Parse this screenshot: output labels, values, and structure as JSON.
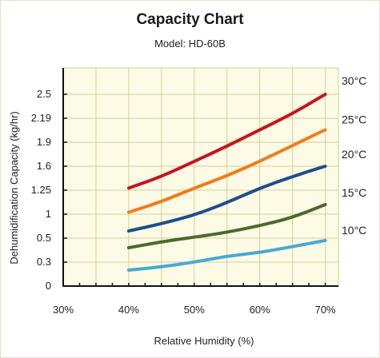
{
  "chart_data": {
    "type": "line",
    "title": "Capacity Chart",
    "subtitle": "Model: HD-60B",
    "xlabel": "Relative Humidity (%)",
    "ylabel": "Dehumidification Capacity (kg/hr)",
    "x_ticks": [
      {
        "value": 30,
        "label": "30%"
      },
      {
        "value": 40,
        "label": "40%"
      },
      {
        "value": 50,
        "label": "50%"
      },
      {
        "value": 60,
        "label": "60%"
      },
      {
        "value": 70,
        "label": "70%"
      }
    ],
    "y_ticks": [
      {
        "value": 0,
        "label": "0"
      },
      {
        "value": 0.3,
        "label": "0.3"
      },
      {
        "value": 0.5,
        "label": "0.5"
      },
      {
        "value": 1,
        "label": "1"
      },
      {
        "value": 1.25,
        "label": "1.25"
      },
      {
        "value": 1.6,
        "label": "1.6"
      },
      {
        "value": 1.9,
        "label": "1.9"
      },
      {
        "value": 2.19,
        "label": "2.19"
      },
      {
        "value": 2.5,
        "label": "2.5"
      }
    ],
    "xlim": [
      30,
      72
    ],
    "grid": true,
    "series": [
      {
        "name": "30°C",
        "color": "#c8141c",
        "points": [
          [
            40,
            1.28
          ],
          [
            45,
            1.45
          ],
          [
            50,
            1.66
          ],
          [
            55,
            1.85
          ],
          [
            60,
            2.05
          ],
          [
            65,
            2.25
          ],
          [
            70,
            2.5
          ]
        ]
      },
      {
        "name": "25°C",
        "color": "#f07c1a",
        "points": [
          [
            40,
            1.02
          ],
          [
            45,
            1.13
          ],
          [
            50,
            1.28
          ],
          [
            55,
            1.46
          ],
          [
            60,
            1.66
          ],
          [
            65,
            1.86
          ],
          [
            70,
            2.05
          ]
        ]
      },
      {
        "name": "20°C",
        "color": "#1f4e8c",
        "points": [
          [
            40,
            0.65
          ],
          [
            45,
            0.8
          ],
          [
            50,
            0.98
          ],
          [
            55,
            1.12
          ],
          [
            60,
            1.28
          ],
          [
            65,
            1.45
          ],
          [
            70,
            1.6
          ]
        ]
      },
      {
        "name": "15°C",
        "color": "#4c6a2a",
        "points": [
          [
            40,
            0.42
          ],
          [
            45,
            0.47
          ],
          [
            50,
            0.52
          ],
          [
            55,
            0.62
          ],
          [
            60,
            0.76
          ],
          [
            65,
            0.93
          ],
          [
            70,
            1.1
          ]
        ]
      },
      {
        "name": "10°C",
        "color": "#46aad2",
        "points": [
          [
            40,
            0.2
          ],
          [
            45,
            0.24
          ],
          [
            50,
            0.3
          ],
          [
            55,
            0.35
          ],
          [
            60,
            0.38
          ],
          [
            65,
            0.43
          ],
          [
            70,
            0.48
          ]
        ]
      }
    ]
  }
}
